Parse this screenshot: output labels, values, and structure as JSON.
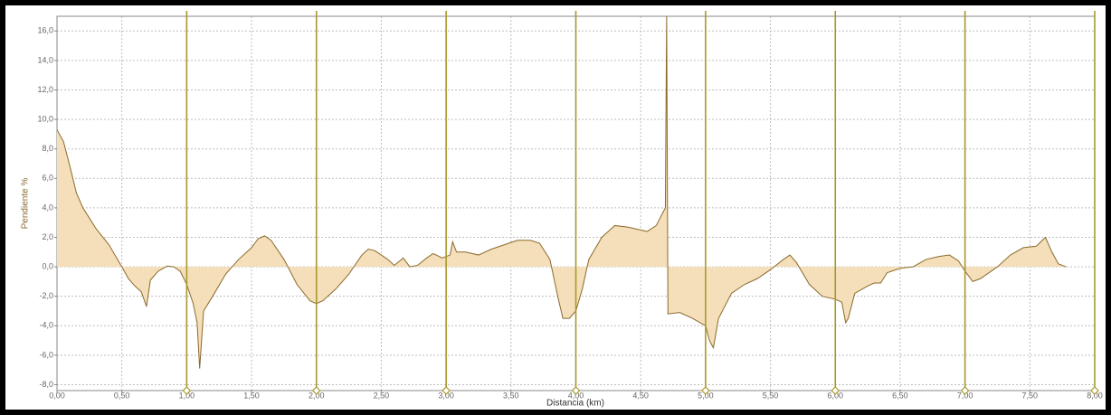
{
  "chart_data": {
    "type": "area",
    "x_label": "Distancia (km)",
    "y_label": "Pendiente %",
    "x": [
      0,
      0.05,
      0.1,
      0.15,
      0.2,
      0.25,
      0.3,
      0.4,
      0.5,
      0.55,
      0.6,
      0.65,
      0.69,
      0.72,
      0.78,
      0.85,
      0.9,
      0.95,
      1.0,
      1.05,
      1.08,
      1.1,
      1.13,
      1.2,
      1.3,
      1.4,
      1.5,
      1.55,
      1.6,
      1.65,
      1.75,
      1.85,
      1.95,
      2.0,
      2.05,
      2.15,
      2.25,
      2.35,
      2.4,
      2.45,
      2.55,
      2.6,
      2.67,
      2.72,
      2.78,
      2.85,
      2.9,
      2.97,
      3.03,
      3.05,
      3.08,
      3.15,
      3.25,
      3.35,
      3.45,
      3.55,
      3.65,
      3.72,
      3.8,
      3.86,
      3.9,
      3.95,
      4.0,
      4.05,
      4.1,
      4.2,
      4.3,
      4.4,
      4.5,
      4.55,
      4.62,
      4.66,
      4.69,
      4.7,
      4.71,
      4.8,
      4.9,
      5.0,
      5.03,
      5.06,
      5.1,
      5.2,
      5.3,
      5.4,
      5.5,
      5.6,
      5.65,
      5.7,
      5.8,
      5.9,
      6.0,
      6.05,
      6.08,
      6.1,
      6.15,
      6.25,
      6.3,
      6.35,
      6.4,
      6.5,
      6.6,
      6.7,
      6.8,
      6.88,
      6.95,
      7.0,
      7.06,
      7.12,
      7.25,
      7.35,
      7.45,
      7.55,
      7.62,
      7.67,
      7.72,
      7.78
    ],
    "values": [
      9.3,
      8.5,
      6.8,
      5.0,
      4.0,
      3.3,
      2.6,
      1.5,
      0.0,
      -0.8,
      -1.3,
      -1.7,
      -2.7,
      -0.9,
      -0.3,
      0.05,
      0.0,
      -0.3,
      -1.2,
      -2.5,
      -3.8,
      -6.9,
      -3.0,
      -2.0,
      -0.5,
      0.5,
      1.3,
      1.9,
      2.1,
      1.8,
      0.5,
      -1.2,
      -2.3,
      -2.5,
      -2.3,
      -1.5,
      -0.5,
      0.8,
      1.2,
      1.1,
      0.5,
      0.1,
      0.6,
      0.0,
      0.1,
      0.6,
      0.9,
      0.6,
      0.8,
      1.7,
      1.0,
      1.0,
      0.8,
      1.2,
      1.5,
      1.8,
      1.8,
      1.6,
      0.5,
      -2.0,
      -3.5,
      -3.5,
      -3.0,
      -1.5,
      0.5,
      2.0,
      2.8,
      2.7,
      2.5,
      2.4,
      2.8,
      3.5,
      4.0,
      17.0,
      -3.2,
      -3.1,
      -3.5,
      -4.0,
      -5.0,
      -5.5,
      -3.5,
      -1.8,
      -1.2,
      -0.8,
      -0.2,
      0.5,
      0.8,
      0.3,
      -1.2,
      -2.0,
      -2.2,
      -2.4,
      -3.8,
      -3.5,
      -1.8,
      -1.3,
      -1.1,
      -1.1,
      -0.4,
      -0.1,
      0.0,
      0.5,
      0.7,
      0.8,
      0.4,
      -0.3,
      -1.0,
      -0.8,
      0.0,
      0.8,
      1.3,
      1.4,
      2.0,
      1.0,
      0.2,
      0.0
    ],
    "fill_color": "#f4dfba",
    "line_color": "#8a6a2c",
    "marker_color": "#a8992c",
    "km_markers": [
      1,
      2,
      3,
      4,
      5,
      6,
      7,
      8
    ],
    "xlim": [
      0,
      8
    ],
    "ylim": [
      -8.4,
      17.0
    ],
    "xticks": [
      {
        "value": 0,
        "label": "0,00"
      },
      {
        "value": 0.5,
        "label": "0,50"
      },
      {
        "value": 1,
        "label": "1,00"
      },
      {
        "value": 1.5,
        "label": "1,50"
      },
      {
        "value": 2,
        "label": "2,00"
      },
      {
        "value": 2.5,
        "label": "2,50"
      },
      {
        "value": 3,
        "label": "3,00"
      },
      {
        "value": 3.5,
        "label": "3,50"
      },
      {
        "value": 4,
        "label": "4,00"
      },
      {
        "value": 4.5,
        "label": "4,50"
      },
      {
        "value": 5,
        "label": "5,00"
      },
      {
        "value": 5.5,
        "label": "5,50"
      },
      {
        "value": 6,
        "label": "6,00"
      },
      {
        "value": 6.5,
        "label": "6,50"
      },
      {
        "value": 7,
        "label": "7,00"
      },
      {
        "value": 7.5,
        "label": "7,50"
      },
      {
        "value": 8,
        "label": "8,00"
      }
    ],
    "yticks": [
      {
        "value": -8,
        "label": "-8,0"
      },
      {
        "value": -6,
        "label": "-6,0"
      },
      {
        "value": -4,
        "label": "-4,0"
      },
      {
        "value": -2,
        "label": "-2,0"
      },
      {
        "value": 0,
        "label": "0,0"
      },
      {
        "value": 2,
        "label": "2,0"
      },
      {
        "value": 4,
        "label": "4,0"
      },
      {
        "value": 6,
        "label": "6,0"
      },
      {
        "value": 8,
        "label": "8,0"
      },
      {
        "value": 10,
        "label": "10,0"
      },
      {
        "value": 12,
        "label": "12,0"
      },
      {
        "value": 14,
        "label": "14,0"
      },
      {
        "value": 16,
        "label": "16,0"
      }
    ],
    "grid": true
  }
}
